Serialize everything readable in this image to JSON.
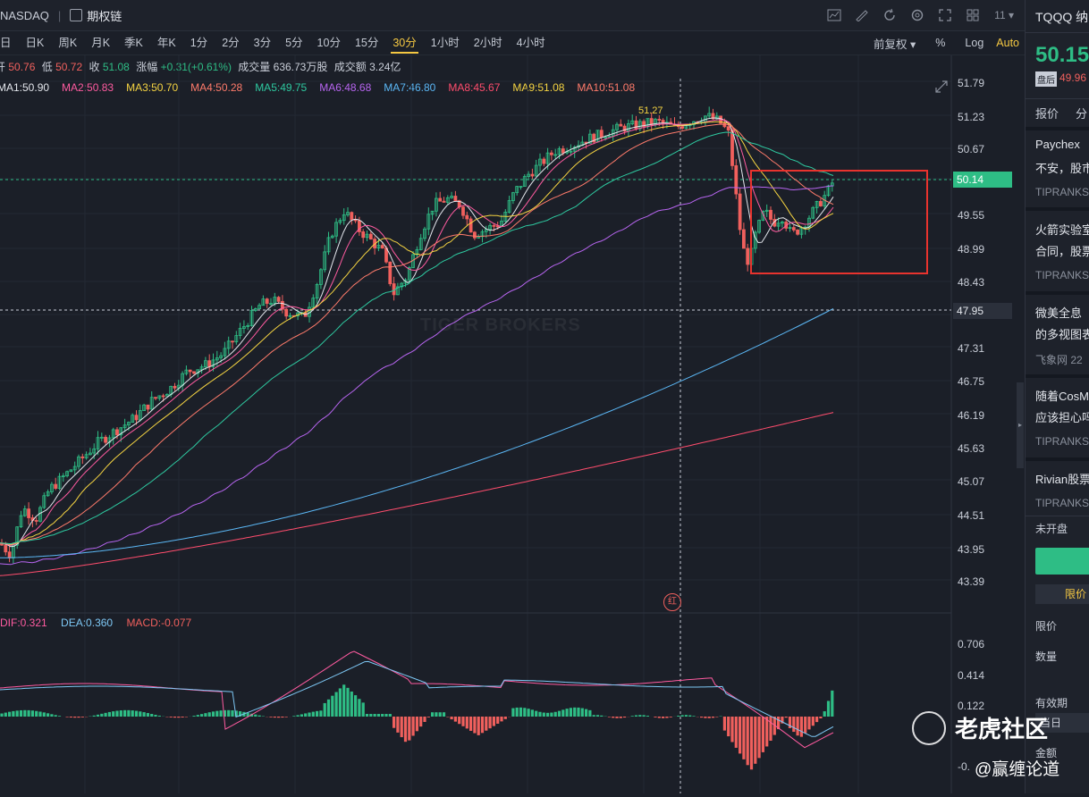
{
  "header": {
    "exchange": "NASDAQ",
    "options_chain": "期权链",
    "right_icons": [
      "chart-icon",
      "draw-icon",
      "refresh-icon",
      "settings-icon",
      "expand-icon",
      "grid-icon"
    ],
    "counter": "11"
  },
  "periods": {
    "items": [
      "日",
      "日K",
      "周K",
      "月K",
      "季K",
      "年K",
      "1分",
      "2分",
      "3分",
      "5分",
      "10分",
      "15分",
      "30分",
      "1小时",
      "2小时",
      "4小时"
    ],
    "active": "30分",
    "adjust": "前复权",
    "percent": "%",
    "log": "Log",
    "auto": "Auto"
  },
  "ohlc": {
    "open_label": "开",
    "open": "50.76",
    "low_label": "低",
    "low": "50.72",
    "close_label": "收",
    "close": "51.08",
    "change_label": "涨幅",
    "change": "+0.31(+0.61%)",
    "volume_label": "成交量",
    "volume": "636.73万股",
    "amount_label": "成交额",
    "amount": "3.24亿"
  },
  "ma": [
    {
      "label": "MA1:50.90",
      "color": "#e4e7ed"
    },
    {
      "label": "MA2:50.83",
      "color": "#ff5ba0"
    },
    {
      "label": "MA3:50.70",
      "color": "#f5d442"
    },
    {
      "label": "MA4:50.28",
      "color": "#ff7b6b"
    },
    {
      "label": "MA5:49.75",
      "color": "#2ec9a0"
    },
    {
      "label": "MA6:48.68",
      "color": "#b765f0"
    },
    {
      "label": "MA7:46.80",
      "color": "#5bb7f5"
    },
    {
      "label": "MA8:45.67",
      "color": "#ff4d6d"
    },
    {
      "label": "MA9:51.08",
      "color": "#f5d442"
    },
    {
      "label": "MA10:51.08",
      "color": "#ff7b6b"
    }
  ],
  "macd": {
    "dif": "DIF:0.321",
    "dea": "DEA:0.360",
    "macd": "MACD:-0.077"
  },
  "price_axis": [
    "51.79",
    "51.23",
    "50.67",
    "50.14",
    "49.55",
    "48.99",
    "48.43",
    "47.95",
    "47.31",
    "46.75",
    "46.19",
    "45.63",
    "45.07",
    "44.51",
    "43.95",
    "43.39"
  ],
  "current_price_tag": "50.14",
  "crosshair_price_tag": "47.95",
  "high_marker": "51.27",
  "macd_axis": [
    "0.706",
    "0.414",
    "0.122",
    "-0."
  ],
  "red_marker": "红",
  "colors": {
    "up": "#2ebd85",
    "down": "#f0605d",
    "bg": "#1b1f28",
    "accent": "#f5c842"
  },
  "right_panel": {
    "ticker": "TQQQ 纳",
    "price": "50.15",
    "pre_label": "盘后",
    "pre_price": "49.96",
    "tab_quote": "报价",
    "tab_split": "分",
    "news": [
      {
        "line1": "Paychex",
        "line2": "不安，股市",
        "source": "TIPRANKS"
      },
      {
        "line1": "火箭实验室",
        "line2": "合同，股票",
        "source": "TIPRANKS"
      },
      {
        "line1": "微美全息",
        "line2": "的多视图表",
        "source": "飞象网 22"
      },
      {
        "line1": "随着CosM",
        "line2": "应该担心吗",
        "source": "TIPRANKS"
      },
      {
        "line1": "Rivian股票",
        "line2": "",
        "source": "TIPRANKS"
      }
    ],
    "market_status": "未开盘",
    "order_type": "限价",
    "limit_label": "限价",
    "qty_label": "数量",
    "validity_label": "有效期",
    "day_label": "当日",
    "amount_label": "金额"
  },
  "watermark": {
    "community": "老虎社区",
    "author": "@赢缠论道",
    "logo": "TIGER BROKERS"
  }
}
